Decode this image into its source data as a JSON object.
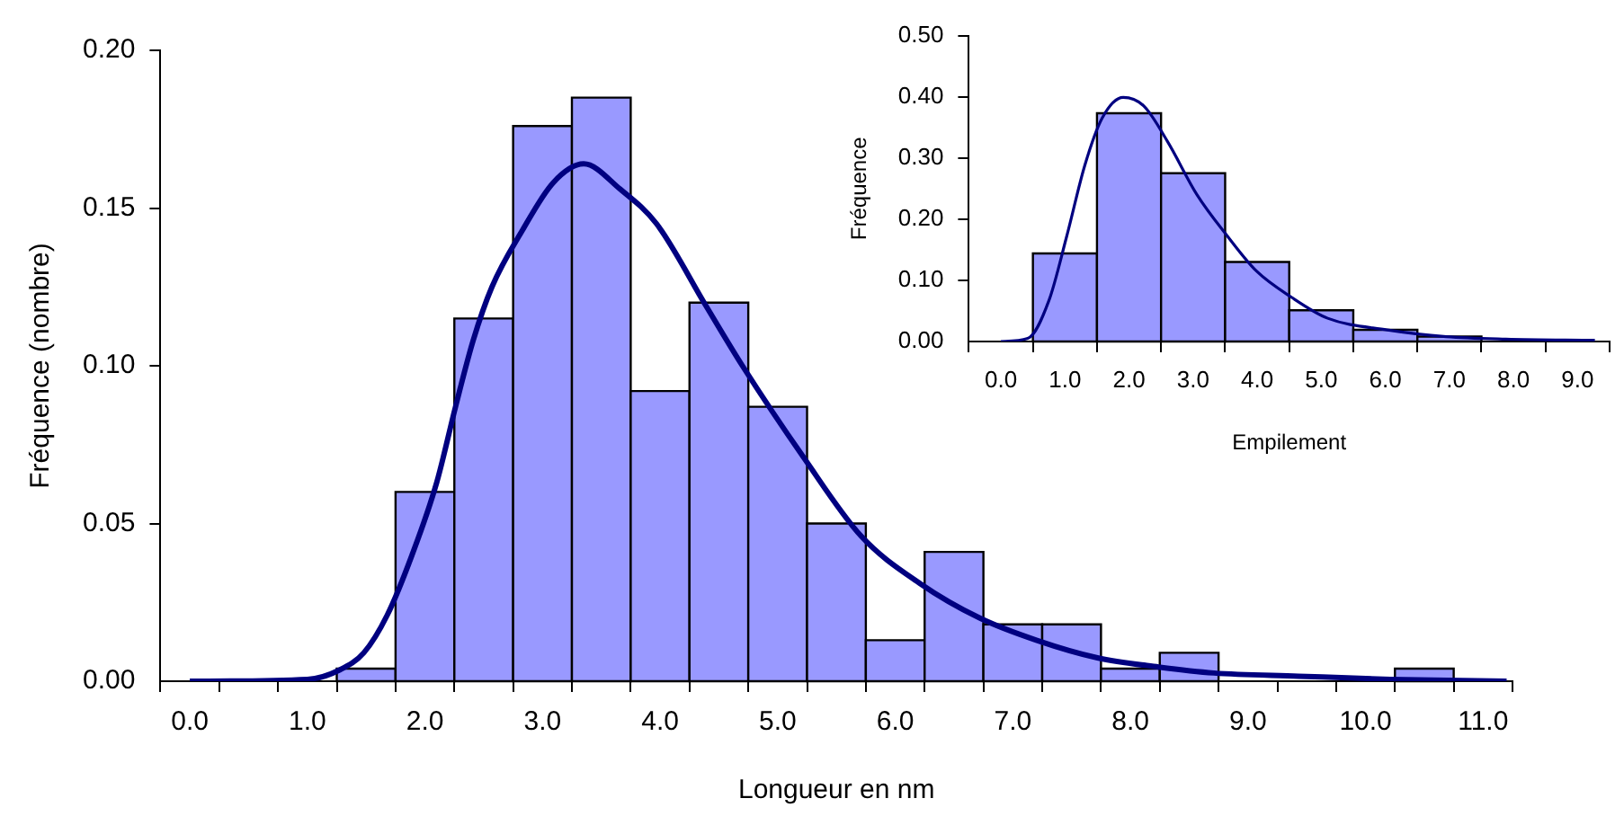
{
  "chart_data": [
    {
      "type": "histogram",
      "xlabel": "Longueur en nm",
      "ylabel": "Fréquence (nombre)",
      "bins": [
        -0.25,
        0.25,
        0.75,
        1.25,
        1.75,
        2.25,
        2.75,
        3.25,
        3.75,
        4.25,
        4.75,
        5.25,
        5.75,
        6.25,
        6.75,
        7.25,
        7.75,
        8.25,
        8.75,
        9.25,
        9.75,
        10.25,
        10.75,
        11.25
      ],
      "series": [
        {
          "type": "histogram",
          "color": "#9999ff",
          "values": [
            0,
            0,
            0,
            0.004,
            0.06,
            0.115,
            0.176,
            0.185,
            0.092,
            0.12,
            0.087,
            0.05,
            0.013,
            0.041,
            0.018,
            0.018,
            0.004,
            0.009,
            0,
            0,
            0,
            0.004,
            0
          ]
        },
        {
          "type": "line",
          "color": "#000080",
          "x": [
            0,
            1.0,
            1.27,
            1.48,
            1.68,
            1.89,
            2.1,
            2.26,
            2.41,
            2.57,
            2.83,
            3.09,
            3.35,
            3.66,
            3.97,
            4.39,
            4.7,
            5.22,
            5.71,
            6.21,
            6.72,
            7.2,
            7.72,
            8.24,
            8.71,
            9.43,
            10.21,
            11.2
          ],
          "values": [
            0,
            0.0006,
            0.0035,
            0.009,
            0.021,
            0.04,
            0.063,
            0.087,
            0.108,
            0.125,
            0.143,
            0.158,
            0.164,
            0.156,
            0.145,
            0.119,
            0.1,
            0.071,
            0.046,
            0.031,
            0.02,
            0.013,
            0.0074,
            0.0045,
            0.0026,
            0.0016,
            0.0006,
            0
          ]
        }
      ],
      "xlim": [
        -0.25,
        11.25
      ],
      "ylim": [
        0,
        0.2
      ],
      "xticks": [
        {
          "value": -0.25,
          "label": null
        },
        {
          "value": 0,
          "label": "0.0"
        },
        {
          "value": 0.25,
          "label": null
        },
        {
          "value": 0.75,
          "label": null
        },
        {
          "value": 1,
          "label": "1.0"
        },
        {
          "value": 1.25,
          "label": null
        },
        {
          "value": 1.75,
          "label": null
        },
        {
          "value": 2,
          "label": "2.0"
        },
        {
          "value": 2.25,
          "label": null
        },
        {
          "value": 2.75,
          "label": null
        },
        {
          "value": 3,
          "label": "3.0"
        },
        {
          "value": 3.25,
          "label": null
        },
        {
          "value": 3.75,
          "label": null
        },
        {
          "value": 4,
          "label": "4.0"
        },
        {
          "value": 4.25,
          "label": null
        },
        {
          "value": 4.75,
          "label": null
        },
        {
          "value": 5,
          "label": "5.0"
        },
        {
          "value": 5.25,
          "label": null
        },
        {
          "value": 5.75,
          "label": null
        },
        {
          "value": 6,
          "label": "6.0"
        },
        {
          "value": 6.25,
          "label": null
        },
        {
          "value": 6.75,
          "label": null
        },
        {
          "value": 7,
          "label": "7.0"
        },
        {
          "value": 7.25,
          "label": null
        },
        {
          "value": 7.75,
          "label": null
        },
        {
          "value": 8,
          "label": "8.0"
        },
        {
          "value": 8.25,
          "label": null
        },
        {
          "value": 8.75,
          "label": null
        },
        {
          "value": 9,
          "label": "9.0"
        },
        {
          "value": 9.25,
          "label": null
        },
        {
          "value": 9.75,
          "label": null
        },
        {
          "value": 10,
          "label": "10.0"
        },
        {
          "value": 10.25,
          "label": null
        },
        {
          "value": 10.75,
          "label": null
        },
        {
          "value": 11,
          "label": "11.0"
        },
        {
          "value": 11.25,
          "label": null
        }
      ],
      "yticks": [
        {
          "value": 0,
          "label": "0.00"
        },
        {
          "value": 0.05,
          "label": "0.05"
        },
        {
          "value": 0.1,
          "label": "0.10"
        },
        {
          "value": 0.15,
          "label": "0.15"
        },
        {
          "value": 0.2,
          "label": "0.20"
        }
      ],
      "grid": false,
      "legend": false
    },
    {
      "type": "histogram",
      "xlabel": "Empilement",
      "ylabel": "Fréquence",
      "bins": [
        -0.5,
        0.5,
        1.5,
        2.5,
        3.5,
        4.5,
        5.5,
        6.5,
        7.5,
        8.5,
        9.5
      ],
      "series": [
        {
          "type": "histogram",
          "color": "#9999ff",
          "values": [
            0,
            0.144,
            0.373,
            0.275,
            0.13,
            0.051,
            0.019,
            0.008,
            null,
            0
          ]
        },
        {
          "type": "line",
          "color": "#000080",
          "x": [
            0,
            0.42,
            0.75,
            1.03,
            1.31,
            1.58,
            1.91,
            2.23,
            2.6,
            3.06,
            3.53,
            3.99,
            4.54,
            5.1,
            6.03,
            6.95,
            7.88,
            9.27
          ],
          "values": [
            0,
            0.005,
            0.067,
            0.173,
            0.288,
            0.365,
            0.399,
            0.385,
            0.327,
            0.24,
            0.173,
            0.115,
            0.072,
            0.038,
            0.019,
            0.008,
            0.004,
            0.002
          ]
        }
      ],
      "xlim": [
        -0.5,
        9.5
      ],
      "ylim": [
        0,
        0.5
      ],
      "xticks": [
        {
          "value": -0.5,
          "label": null
        },
        {
          "value": 0,
          "label": "0.0"
        },
        {
          "value": 0.5,
          "label": null
        },
        {
          "value": 1,
          "label": "1.0"
        },
        {
          "value": 1.5,
          "label": null
        },
        {
          "value": 2,
          "label": "2.0"
        },
        {
          "value": 2.5,
          "label": null
        },
        {
          "value": 3,
          "label": "3.0"
        },
        {
          "value": 3.5,
          "label": null
        },
        {
          "value": 4,
          "label": "4.0"
        },
        {
          "value": 4.5,
          "label": null
        },
        {
          "value": 5,
          "label": "5.0"
        },
        {
          "value": 5.5,
          "label": null
        },
        {
          "value": 6,
          "label": "6.0"
        },
        {
          "value": 6.5,
          "label": null
        },
        {
          "value": 7,
          "label": "7.0"
        },
        {
          "value": 7.5,
          "label": null
        },
        {
          "value": 8,
          "label": "8.0"
        },
        {
          "value": 8.5,
          "label": null
        },
        {
          "value": 9,
          "label": "9.0"
        },
        {
          "value": 9.5,
          "label": null
        }
      ],
      "yticks": [
        {
          "value": 0,
          "label": "0.00"
        },
        {
          "value": 0.1,
          "label": "0.10"
        },
        {
          "value": 0.2,
          "label": "0.20"
        },
        {
          "value": 0.3,
          "label": "0.30"
        },
        {
          "value": 0.4,
          "label": "0.40"
        },
        {
          "value": 0.5,
          "label": "0.50"
        }
      ],
      "grid": false,
      "legend": false
    }
  ]
}
